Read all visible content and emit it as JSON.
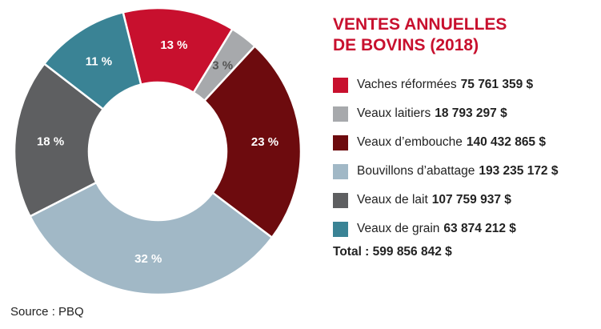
{
  "chart_data": {
    "type": "pie",
    "title_lines": [
      "VENTES ANNUELLES",
      "DE BOVINS (2018)"
    ],
    "slices": [
      {
        "label": "Vaches réformées",
        "value_text": "75 761 359 $",
        "value": 75761359,
        "percent_label": "13 %",
        "color": "#c8102e"
      },
      {
        "label": "Veaux laitiers",
        "value_text": "18 793 297 $",
        "value": 18793297,
        "percent_label": "3 %",
        "color": "#a7a9ac"
      },
      {
        "label": "Veaux d’embouche",
        "value_text": "140 432 865 $",
        "value": 140432865,
        "percent_label": "23 %",
        "color": "#6d0b0e"
      },
      {
        "label": "Bouvillons d’abattage",
        "value_text": "193 235 172 $",
        "value": 193235172,
        "percent_label": "32 %",
        "color": "#a1b8c6"
      },
      {
        "label": "Veaux de lait",
        "value_text": "107 759 937 $",
        "value": 107759937,
        "percent_label": "18 %",
        "color": "#5e5f61"
      },
      {
        "label": "Veaux de grain",
        "value_text": "63 874 212 $",
        "value": 63874212,
        "percent_label": "11 %",
        "color": "#3a8395"
      }
    ],
    "total_label": "Total : 599 856 842 $",
    "source": "Source : PBQ",
    "percent_label_colors": {
      "Vaches réformées": "#ffffff",
      "Veaux laitiers": "#555555",
      "Veaux d’embouche": "#ffffff",
      "Bouvillons d’abattage": "#ffffff",
      "Veaux de lait": "#ffffff",
      "Veaux de grain": "#ffffff"
    }
  }
}
